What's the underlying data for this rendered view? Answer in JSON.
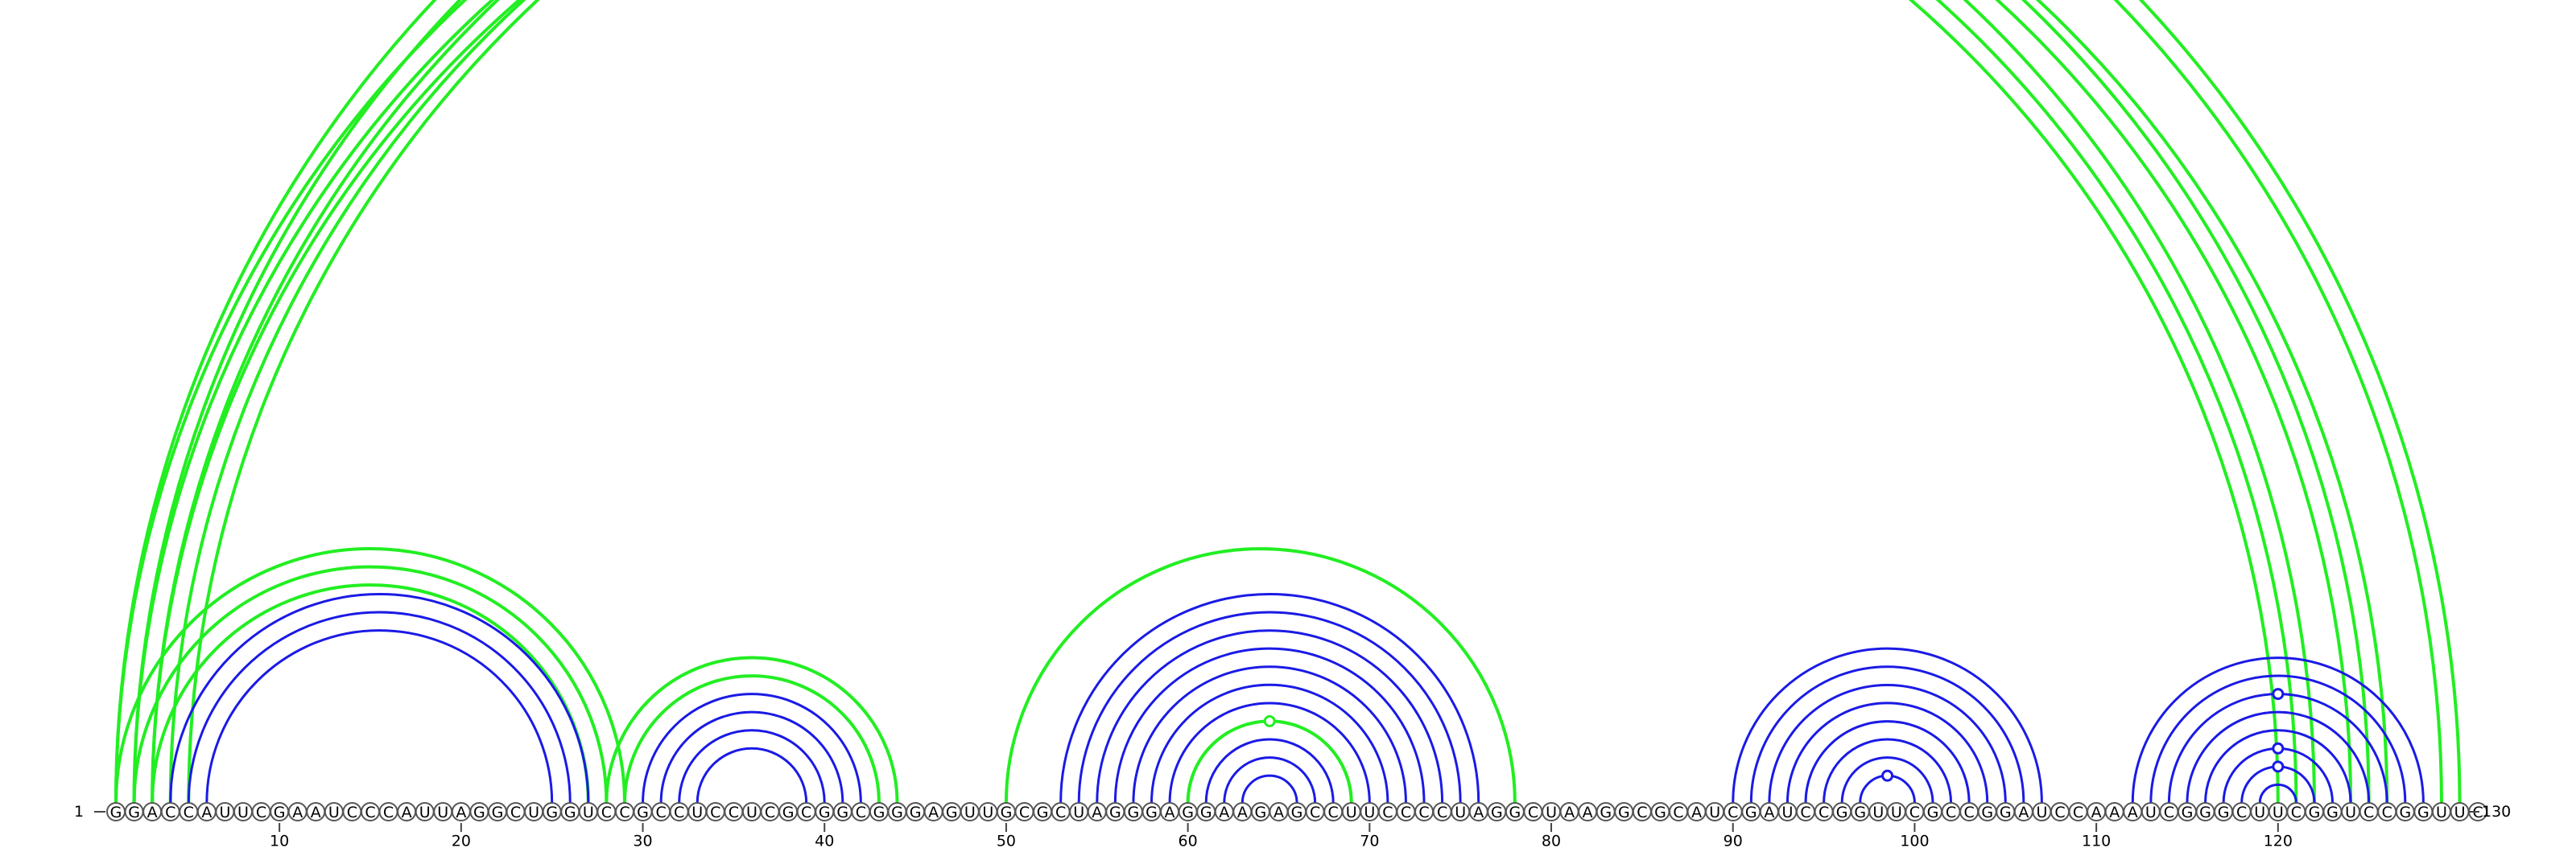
{
  "sequence": "GGACCAUUCGAAUCCCAUUAGGCUGGUCCGCCUCCUCGCGGCGGGAGUUGCGCUAGGGAGGAAGAGCCUUCCCCUAGGCUAAGGCGCAUCGAUCCGGUUCGCCGGAUCCAAAUCGGGCUUCGGUCCGGUUC",
  "start_label": "1",
  "end_label": "130",
  "ticks": [
    "10",
    "20",
    "30",
    "40",
    "50",
    "60",
    "70",
    "80",
    "90",
    "100",
    "110",
    "120"
  ],
  "colors": {
    "blue": "#1a1ae6",
    "green": "#22ee22",
    "circle_stroke": "#555555"
  },
  "helices": [
    {
      "color": "green",
      "i": 1,
      "j": 122,
      "n": 1
    },
    {
      "color": "green",
      "i": 2,
      "j": 121,
      "n": 2
    },
    {
      "color": "green",
      "i": 3,
      "j": 125,
      "n": 1
    },
    {
      "color": "green",
      "i": 4,
      "j": 124,
      "n": 1
    },
    {
      "color": "green",
      "i": 5,
      "j": 126,
      "n": 1
    },
    {
      "color": "green",
      "i": 2,
      "j": 129,
      "n": 1
    },
    {
      "color": "green",
      "i": 1,
      "j": 130,
      "n": 1
    },
    {
      "color": "green",
      "i": 1,
      "j": 29,
      "n": 1
    },
    {
      "color": "green",
      "i": 2,
      "j": 28,
      "n": 2
    },
    {
      "color": "blue",
      "i": 4,
      "j": 27,
      "n": 1
    },
    {
      "color": "blue",
      "i": 5,
      "j": 26,
      "n": 1
    },
    {
      "color": "blue",
      "i": 6,
      "j": 25,
      "n": 1
    },
    {
      "color": "green",
      "i": 28,
      "j": 44,
      "n": 1
    },
    {
      "color": "green",
      "i": 29,
      "j": 43,
      "n": 1
    },
    {
      "color": "blue",
      "i": 30,
      "j": 42,
      "n": 4
    },
    {
      "color": "green",
      "i": 50,
      "j": 78,
      "n": 1
    },
    {
      "color": "blue",
      "i": 53,
      "j": 76,
      "n": 8
    },
    {
      "color": "green",
      "i": 60,
      "j": 69,
      "n": 1
    },
    {
      "color": "blue",
      "i": 61,
      "j": 68,
      "n": 3
    },
    {
      "color": "blue",
      "i": 90,
      "j": 107,
      "n": 5
    },
    {
      "color": "blue",
      "i": 95,
      "j": 102,
      "n": 3
    },
    {
      "color": "blue",
      "i": 112,
      "j": 128,
      "n": 6
    },
    {
      "color": "blue",
      "i": 118,
      "j": 122,
      "n": 2
    }
  ],
  "markers": [
    {
      "color": "green",
      "i": 1,
      "j": 130
    },
    {
      "color": "green",
      "i": 60,
      "j": 69
    },
    {
      "color": "blue",
      "i": 97,
      "j": 100
    },
    {
      "color": "blue",
      "i": 118,
      "j": 122
    },
    {
      "color": "blue",
      "i": 117,
      "j": 123
    },
    {
      "color": "blue",
      "i": 114,
      "j": 126
    }
  ]
}
